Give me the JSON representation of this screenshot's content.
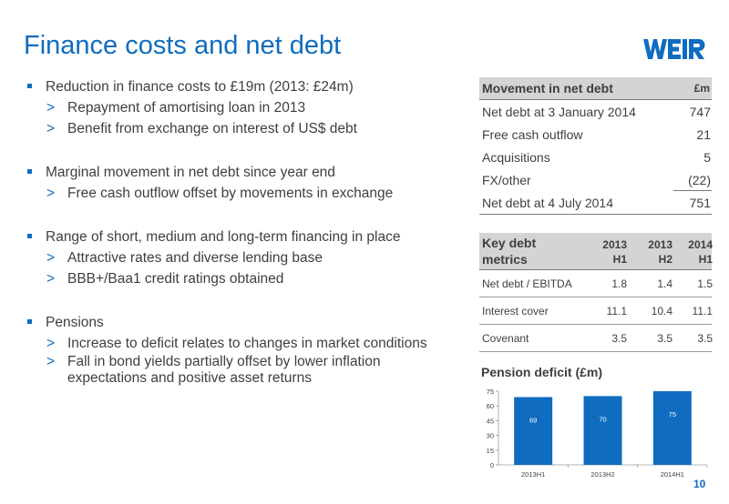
{
  "title": "Finance costs and net debt",
  "logo_text": "WEIR",
  "bullets": [
    {
      "text": "Reduction in finance costs to £19m (2013: £24m)",
      "subs": [
        "Repayment of amortising loan in 2013",
        "Benefit from exchange on interest of US$ debt"
      ]
    },
    {
      "text": "Marginal movement in net debt since year end",
      "subs": [
        "Free cash outflow offset by movements in exchange"
      ]
    },
    {
      "text": "Range of short, medium and long-term financing in place",
      "subs": [
        "Attractive rates and diverse lending base",
        "BBB+/Baa1 credit ratings obtained"
      ]
    },
    {
      "text": "Pensions",
      "subs": [
        "Increase to deficit relates to changes in market conditions",
        "Fall in bond yields partially offset by lower inflation expectations and positive asset returns"
      ]
    }
  ],
  "sub_marker": ">",
  "movement": {
    "header": "Movement in net debt",
    "unit": "£m",
    "rows": [
      {
        "label": "Net debt at 3 January 2014",
        "value": "747"
      },
      {
        "label": "Free cash outflow",
        "value": "21"
      },
      {
        "label": "Acquisitions",
        "value": "5"
      },
      {
        "label": "FX/other",
        "value": "(22)"
      },
      {
        "label": "Net debt at 4 July 2014",
        "value": "751"
      }
    ]
  },
  "metrics": {
    "header": "Key debt metrics",
    "columns": [
      {
        "year": "2013",
        "half": "H1"
      },
      {
        "year": "2013",
        "half": "H2"
      },
      {
        "year": "2014",
        "half": "H1"
      }
    ],
    "rows": [
      {
        "label": "Net debt / EBITDA",
        "values": [
          "1.8",
          "1.4",
          "1.5"
        ]
      },
      {
        "label": "Interest cover",
        "values": [
          "11.1",
          "10.4",
          "11.1"
        ]
      },
      {
        "label": "Covenant",
        "values": [
          "3.5",
          "3.5",
          "3.5"
        ]
      }
    ]
  },
  "chart_data": {
    "type": "bar",
    "title": "Pension deficit (£m)",
    "categories": [
      "2013H1",
      "2013H2",
      "2014H1"
    ],
    "values": [
      69,
      70,
      75
    ],
    "ylim": [
      0,
      75
    ],
    "yticks": [
      0,
      15,
      30,
      45,
      60,
      75
    ],
    "bar_color": "#0f6cc0",
    "grid": false
  },
  "page_number": "10",
  "colors": {
    "accent": "#0f6cc0",
    "header_bg": "#d4d4d4"
  }
}
